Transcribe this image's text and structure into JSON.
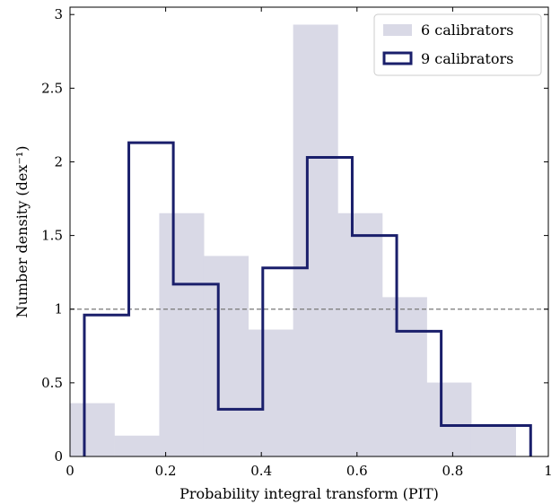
{
  "chart_data": {
    "type": "bar",
    "xlabel": "Probability integral transform (PIT)",
    "ylabel": "Number density (dex⁻¹)",
    "xlim": [
      0,
      1
    ],
    "ylim": [
      0,
      3.05
    ],
    "grid": false,
    "legend_position": "top-right",
    "x_ticks": [
      0,
      0.2,
      0.4,
      0.6,
      0.8,
      1
    ],
    "x_tick_labels": [
      "0",
      "0.2",
      "0.4",
      "0.6",
      "0.8",
      "1"
    ],
    "y_ticks": [
      0,
      0.5,
      1,
      1.5,
      2,
      2.5,
      3
    ],
    "y_tick_labels": [
      "0",
      "0.5",
      "1",
      "1.5",
      "2",
      "2.5",
      "3"
    ],
    "reference_line": {
      "y": 1,
      "style": "dashed",
      "color": "#777777"
    },
    "series": [
      {
        "name": "6 calibrators",
        "style": "filled",
        "color": "#d9d9e6",
        "bin_edges": [
          0.0,
          0.093,
          0.187,
          0.28,
          0.373,
          0.467,
          0.56,
          0.653,
          0.746,
          0.839,
          0.932
        ],
        "values": [
          0.36,
          0.14,
          1.65,
          1.36,
          0.86,
          2.93,
          1.65,
          1.08,
          0.5,
          0.21
        ]
      },
      {
        "name": "9 calibrators",
        "style": "step",
        "color": "#1a1f6b",
        "bin_edges": [
          0.03,
          0.123,
          0.216,
          0.31,
          0.403,
          0.496,
          0.59,
          0.683,
          0.776,
          0.87,
          0.963
        ],
        "values": [
          0.96,
          2.13,
          1.17,
          0.32,
          1.28,
          2.03,
          1.5,
          0.85,
          0.21,
          0.21
        ]
      }
    ]
  }
}
